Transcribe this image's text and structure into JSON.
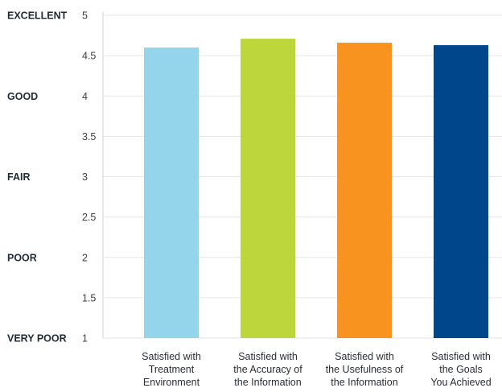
{
  "chart_data": {
    "type": "bar",
    "title": "",
    "xlabel": "",
    "ylabel": "",
    "ylim": [
      1,
      5
    ],
    "yticks": [
      "1",
      "1.5",
      "2",
      "2.5",
      "3",
      "3.5",
      "4",
      "4.5",
      "5"
    ],
    "rating_labels": [
      {
        "value": 5,
        "label": "EXCELLENT"
      },
      {
        "value": 4,
        "label": "GOOD"
      },
      {
        "value": 3,
        "label": "FAIR"
      },
      {
        "value": 2,
        "label": "POOR"
      },
      {
        "value": 1,
        "label": "VERY POOR"
      }
    ],
    "categories": [
      [
        "Satisfied with",
        "Treatment",
        "Environment"
      ],
      [
        "Satisfied with",
        "the Accuracy of",
        "the Information"
      ],
      [
        "Satisfied with",
        "the Usefulness of",
        "the Information"
      ],
      [
        "Satisfied with",
        "the Goals",
        "You Achieved"
      ]
    ],
    "values": [
      4.6,
      4.71,
      4.66,
      4.63
    ],
    "colors": [
      "#94d5eb",
      "#bdd63b",
      "#f7931e",
      "#00468b"
    ],
    "grid": true,
    "legend": "none"
  }
}
